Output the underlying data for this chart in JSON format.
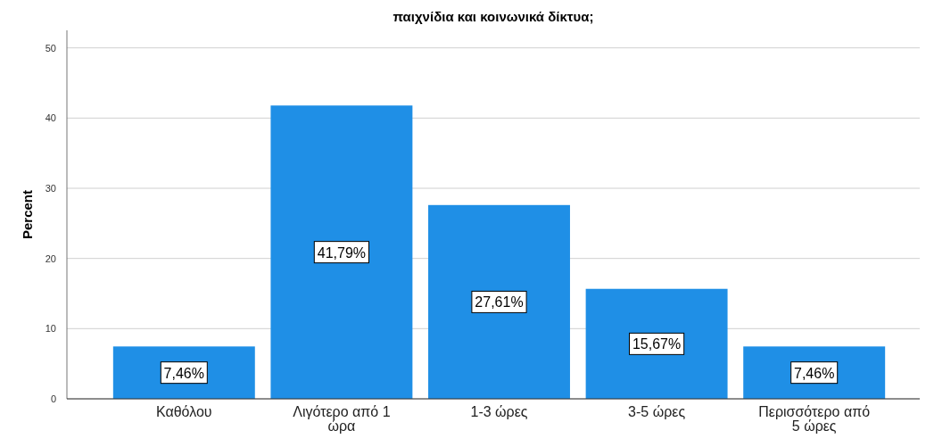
{
  "chart_data": {
    "type": "bar",
    "title": "παιχνίδια και κοινωνικά δίκτυα;",
    "ylabel": "Percent",
    "categories": [
      "Καθόλου",
      "Λιγότερο από 1 ώρα",
      "1-3 ώρες",
      "3-5 ώρες",
      "Περισσότερο από 5 ώρες"
    ],
    "values": [
      7.46,
      41.79,
      27.61,
      15.67,
      7.46
    ],
    "value_labels": [
      "7,46%",
      "41,79%",
      "27,61%",
      "15,67%",
      "7,46%"
    ],
    "color": "#1f8fe6",
    "ylim": [
      0,
      52.5
    ],
    "yticks": [
      0,
      10,
      20,
      30,
      40,
      50
    ],
    "grid": "y"
  }
}
